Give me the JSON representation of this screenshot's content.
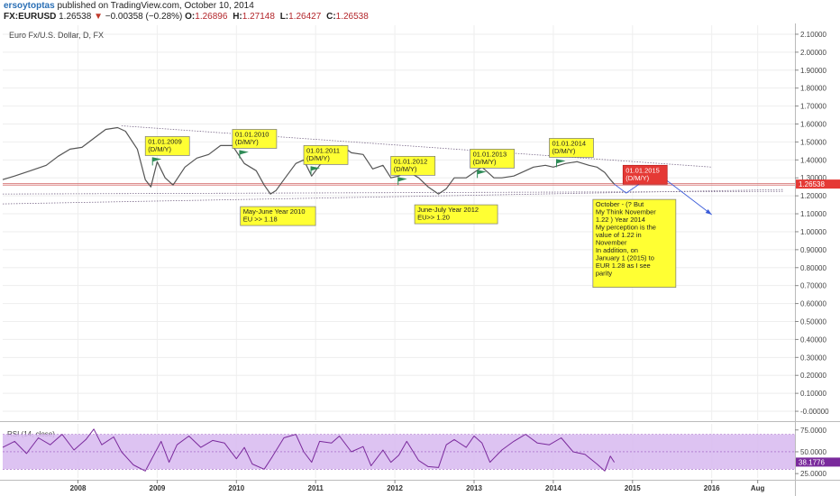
{
  "header": {
    "user": "ersoytoptas",
    "published": "published on TradingView.com, October 10, 2014",
    "symbol": "FX:EURUSD",
    "last": "1.26538",
    "change_arrow": "▼",
    "change": "−0.00358 (−0.28%)",
    "ohlc": [
      {
        "label": "O:",
        "value": "1.26896"
      },
      {
        "label": "H:",
        "value": "1.27148"
      },
      {
        "label": "L:",
        "value": "1.26427"
      },
      {
        "label": "C:",
        "value": "1.26538"
      }
    ]
  },
  "chart_data": [
    {
      "type": "line",
      "title": "Euro Fx/U.S. Dollar, D, FX",
      "ylim": [
        -0.05,
        2.15
      ],
      "y_ticks": [
        "2.10000",
        "2.00000",
        "1.90000",
        "1.80000",
        "1.70000",
        "1.60000",
        "1.50000",
        "1.40000",
        "1.30000",
        "1.20000",
        "1.10000",
        "1.00000",
        "0.90000",
        "0.80000",
        "0.70000",
        "0.60000",
        "0.50000",
        "0.40000",
        "0.30000",
        "0.20000",
        "0.10000",
        "-0.00000"
      ],
      "x_ticks": [
        {
          "label": "2008",
          "x": 2008.0
        },
        {
          "label": "2009",
          "x": 2009.0
        },
        {
          "label": "2010",
          "x": 2010.0
        },
        {
          "label": "2011",
          "x": 2011.0
        },
        {
          "label": "2012",
          "x": 2012.0
        },
        {
          "label": "2013",
          "x": 2013.0
        },
        {
          "label": "2014",
          "x": 2014.0
        },
        {
          "label": "2015",
          "x": 2015.0
        },
        {
          "label": "2016",
          "x": 2016.0
        },
        {
          "label": "Aug",
          "x": 2016.58
        }
      ],
      "grid": true,
      "x_range": [
        2007.05,
        2017.05
      ],
      "series": [
        {
          "color": "#555555",
          "points": [
            [
              2007.05,
              1.29
            ],
            [
              2007.2,
              1.31
            ],
            [
              2007.4,
              1.34
            ],
            [
              2007.6,
              1.37
            ],
            [
              2007.75,
              1.42
            ],
            [
              2007.9,
              1.46
            ],
            [
              2008.05,
              1.47
            ],
            [
              2008.2,
              1.52
            ],
            [
              2008.35,
              1.57
            ],
            [
              2008.5,
              1.58
            ],
            [
              2008.6,
              1.56
            ],
            [
              2008.75,
              1.46
            ],
            [
              2008.85,
              1.29
            ],
            [
              2008.92,
              1.25
            ],
            [
              2009.0,
              1.39
            ],
            [
              2009.1,
              1.3
            ],
            [
              2009.2,
              1.26
            ],
            [
              2009.35,
              1.36
            ],
            [
              2009.5,
              1.41
            ],
            [
              2009.65,
              1.43
            ],
            [
              2009.8,
              1.48
            ],
            [
              2009.95,
              1.48
            ],
            [
              2010.1,
              1.38
            ],
            [
              2010.25,
              1.34
            ],
            [
              2010.35,
              1.26
            ],
            [
              2010.43,
              1.21
            ],
            [
              2010.5,
              1.23
            ],
            [
              2010.6,
              1.29
            ],
            [
              2010.75,
              1.38
            ],
            [
              2010.85,
              1.4
            ],
            [
              2010.95,
              1.31
            ],
            [
              2011.05,
              1.37
            ],
            [
              2011.2,
              1.42
            ],
            [
              2011.33,
              1.48
            ],
            [
              2011.45,
              1.44
            ],
            [
              2011.6,
              1.43
            ],
            [
              2011.72,
              1.35
            ],
            [
              2011.85,
              1.37
            ],
            [
              2011.95,
              1.3
            ],
            [
              2012.05,
              1.31
            ],
            [
              2012.15,
              1.34
            ],
            [
              2012.3,
              1.3
            ],
            [
              2012.42,
              1.25
            ],
            [
              2012.55,
              1.21
            ],
            [
              2012.65,
              1.24
            ],
            [
              2012.75,
              1.3
            ],
            [
              2012.9,
              1.3
            ],
            [
              2013.0,
              1.33
            ],
            [
              2013.1,
              1.36
            ],
            [
              2013.25,
              1.3
            ],
            [
              2013.35,
              1.3
            ],
            [
              2013.5,
              1.31
            ],
            [
              2013.6,
              1.33
            ],
            [
              2013.75,
              1.36
            ],
            [
              2013.9,
              1.37
            ],
            [
              2014.0,
              1.36
            ],
            [
              2014.15,
              1.38
            ],
            [
              2014.3,
              1.39
            ],
            [
              2014.45,
              1.37
            ],
            [
              2014.55,
              1.36
            ],
            [
              2014.65,
              1.33
            ],
            [
              2014.72,
              1.29
            ],
            [
              2014.77,
              1.265
            ]
          ]
        }
      ],
      "last_value_label": "1.26538",
      "trend_lines": [
        {
          "x1": 2008.55,
          "y1": 1.59,
          "x2": 2016.0,
          "y2": 1.36
        },
        {
          "x1": 2007.05,
          "y1": 1.155,
          "x2": 2016.9,
          "y2": 1.235
        },
        {
          "x1": 2007.05,
          "y1": 1.21,
          "x2": 2016.9,
          "y2": 1.225
        }
      ],
      "red_lines": [
        1.268,
        1.26
      ],
      "projection": [
        [
          2014.77,
          1.265
        ],
        [
          2014.92,
          1.215
        ],
        [
          2015.1,
          1.27
        ],
        [
          2015.3,
          1.33
        ],
        [
          2016.0,
          1.095
        ]
      ],
      "annotations": [
        {
          "text": "01.01.2009\n(D/M/Y)",
          "x": 2008.85,
          "y": 1.53,
          "style": "flag"
        },
        {
          "text": "01.01.2010\n(D/M/Y)",
          "x": 2009.95,
          "y": 1.57,
          "style": "flag"
        },
        {
          "text": "01.01.2011\n(D/M/Y)",
          "x": 2010.85,
          "y": 1.48,
          "style": "flag"
        },
        {
          "text": "01.01.2012\n(D/M/Y)",
          "x": 2011.95,
          "y": 1.42,
          "style": "flag"
        },
        {
          "text": "01.01.2013\n(D/M/Y)",
          "x": 2012.95,
          "y": 1.46,
          "style": "flag"
        },
        {
          "text": "01.01.2014\n(D/M/Y)",
          "x": 2013.95,
          "y": 1.52,
          "style": "flag"
        },
        {
          "text": "01.01.2015\n(D/M/Y)",
          "x": 2014.88,
          "y": 1.37,
          "style": "red"
        },
        {
          "text": "May-June Year 2010\nEU >> 1.18",
          "x": 2010.05,
          "y": 1.14,
          "style": "box"
        },
        {
          "text": "June-July  Year 2012\nEU>> 1.20",
          "x": 2012.25,
          "y": 1.15,
          "style": "box"
        },
        {
          "text": "October - (?  But\nMy Think November\n1.22 ) Year 2014\n\nMy perception is the\nvalue of 1.22 in\nNovember\nIn addition, on\nJanuary 1 (2015) to\nEUR 1.28 as I see\nparity",
          "x": 2014.5,
          "y": 1.18,
          "style": "box"
        }
      ]
    },
    {
      "type": "line",
      "title": "RSI (14, close)",
      "ylim": [
        20,
        82
      ],
      "y_ticks": [
        "75.0000",
        "50.0000",
        "25.0000"
      ],
      "band": [
        30,
        70
      ],
      "last_value_label": "38.1776",
      "x_range": [
        2007.05,
        2017.05
      ],
      "series": [
        {
          "color": "#7a2a9c",
          "points": [
            [
              2007.05,
              55
            ],
            [
              2007.2,
              62
            ],
            [
              2007.35,
              48
            ],
            [
              2007.5,
              66
            ],
            [
              2007.65,
              58
            ],
            [
              2007.8,
              70
            ],
            [
              2007.95,
              52
            ],
            [
              2008.1,
              64
            ],
            [
              2008.2,
              76
            ],
            [
              2008.3,
              58
            ],
            [
              2008.45,
              67
            ],
            [
              2008.55,
              50
            ],
            [
              2008.7,
              35
            ],
            [
              2008.85,
              28
            ],
            [
              2008.95,
              45
            ],
            [
              2009.05,
              62
            ],
            [
              2009.15,
              38
            ],
            [
              2009.25,
              58
            ],
            [
              2009.4,
              68
            ],
            [
              2009.55,
              55
            ],
            [
              2009.7,
              63
            ],
            [
              2009.85,
              60
            ],
            [
              2010.0,
              42
            ],
            [
              2010.1,
              55
            ],
            [
              2010.2,
              36
            ],
            [
              2010.35,
              30
            ],
            [
              2010.45,
              44
            ],
            [
              2010.6,
              66
            ],
            [
              2010.75,
              70
            ],
            [
              2010.85,
              50
            ],
            [
              2010.95,
              38
            ],
            [
              2011.05,
              62
            ],
            [
              2011.2,
              60
            ],
            [
              2011.3,
              68
            ],
            [
              2011.45,
              50
            ],
            [
              2011.6,
              56
            ],
            [
              2011.7,
              34
            ],
            [
              2011.85,
              52
            ],
            [
              2011.95,
              38
            ],
            [
              2012.05,
              46
            ],
            [
              2012.15,
              62
            ],
            [
              2012.3,
              40
            ],
            [
              2012.42,
              33
            ],
            [
              2012.55,
              32
            ],
            [
              2012.65,
              58
            ],
            [
              2012.75,
              64
            ],
            [
              2012.9,
              55
            ],
            [
              2013.0,
              68
            ],
            [
              2013.1,
              60
            ],
            [
              2013.2,
              38
            ],
            [
              2013.35,
              52
            ],
            [
              2013.5,
              62
            ],
            [
              2013.65,
              70
            ],
            [
              2013.8,
              60
            ],
            [
              2013.95,
              58
            ],
            [
              2014.1,
              66
            ],
            [
              2014.25,
              50
            ],
            [
              2014.4,
              47
            ],
            [
              2014.55,
              36
            ],
            [
              2014.65,
              28
            ],
            [
              2014.72,
              45
            ],
            [
              2014.77,
              38
            ]
          ]
        }
      ]
    }
  ]
}
